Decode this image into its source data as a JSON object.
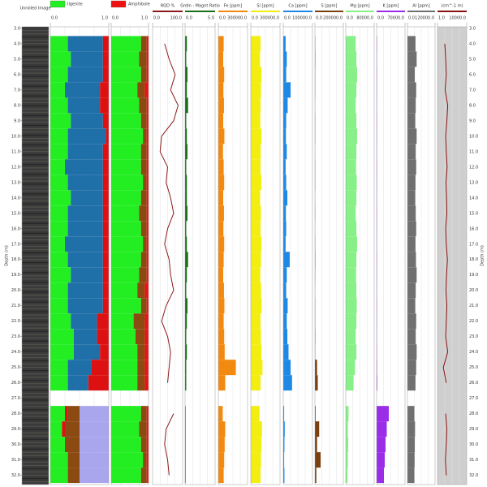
{
  "depth_axis": {
    "label": "Depth (m)",
    "ylim": [
      2.9,
      32.6
    ],
    "yticks": [
      {
        "value": 3,
        "label": "3.0"
      },
      {
        "value": 4,
        "label": "4.0"
      },
      {
        "value": 5,
        "label": "5.0"
      },
      {
        "value": 6,
        "label": "6.0"
      },
      {
        "value": 7,
        "label": "7.0"
      },
      {
        "value": 8,
        "label": "8.0"
      },
      {
        "value": 9,
        "label": "9.0"
      },
      {
        "value": 10,
        "label": "10.0"
      },
      {
        "value": 11,
        "label": "11.0"
      },
      {
        "value": 12,
        "label": "12.0"
      },
      {
        "value": 13,
        "label": "13.0"
      },
      {
        "value": 14,
        "label": "14.0"
      },
      {
        "value": 15,
        "label": "15.0"
      },
      {
        "value": 16,
        "label": "16.0"
      },
      {
        "value": 17,
        "label": "17.0"
      },
      {
        "value": 18,
        "label": "18.0"
      },
      {
        "value": 19,
        "label": "19.0"
      },
      {
        "value": 20,
        "label": "20.0"
      },
      {
        "value": 21,
        "label": "21.0"
      },
      {
        "value": 22,
        "label": "22.0"
      },
      {
        "value": 23,
        "label": "23.0"
      },
      {
        "value": 24,
        "label": "24.0"
      },
      {
        "value": 25,
        "label": "25.0"
      },
      {
        "value": 26,
        "label": "26.0"
      },
      {
        "value": 27,
        "label": "27.0"
      },
      {
        "value": 28,
        "label": "28.0"
      },
      {
        "value": 29,
        "label": "29.0"
      },
      {
        "value": 30,
        "label": "30.0"
      },
      {
        "value": 31,
        "label": "31.0"
      },
      {
        "value": 32,
        "label": "32.0"
      }
    ],
    "y": [
      4,
      5,
      6,
      7,
      8,
      9,
      10,
      11,
      12,
      13,
      14,
      15,
      16,
      17,
      18,
      19,
      20,
      21,
      22,
      23,
      24,
      25,
      26,
      27,
      28,
      29,
      30,
      31,
      32
    ]
  },
  "chart_data": [
    {
      "type": "image",
      "title": "Unrolled Image"
    },
    {
      "type": "stacked",
      "xlim": [
        0,
        1
      ],
      "xticks": [
        {
          "value": 0,
          "label": "0.0"
        },
        {
          "value": 1,
          "label": "1.0"
        }
      ],
      "series": [
        {
          "name": "Ilgenite",
          "color": "#22ee22",
          "values": [
            0.3,
            0.35,
            0.3,
            0.25,
            0.3,
            0.35,
            0.3,
            0.3,
            0.25,
            0.3,
            0.35,
            0.3,
            0.3,
            0.25,
            0.3,
            0.35,
            0.3,
            0.3,
            0.35,
            0.4,
            0.4,
            0.3,
            0.3,
            null,
            0.25,
            0.2,
            0.25,
            0.3,
            0.3
          ]
        },
        {
          "color": "#1f6fa8",
          "values": [
            0.6,
            0.55,
            0.6,
            0.6,
            0.55,
            0.55,
            0.65,
            0.6,
            0.65,
            0.6,
            0.55,
            0.6,
            0.6,
            0.65,
            0.6,
            0.55,
            0.6,
            0.6,
            0.45,
            0.4,
            0.45,
            0.4,
            0.35,
            null,
            0,
            0,
            0,
            0,
            0
          ]
        },
        {
          "color": "#dd1111",
          "values": [
            0.1,
            0.1,
            0.1,
            0.15,
            0.15,
            0.1,
            0.05,
            0.1,
            0.1,
            0.1,
            0.1,
            0.1,
            0.1,
            0.1,
            0.1,
            0.1,
            0.1,
            0.1,
            0.2,
            0.2,
            0.15,
            0.3,
            0.35,
            null,
            0.05,
            0.05,
            0,
            0,
            0
          ]
        },
        {
          "color": "#8a4a12",
          "values": [
            0,
            0,
            0,
            0,
            0,
            0,
            0,
            0,
            0,
            0,
            0,
            0,
            0,
            0,
            0,
            0,
            0,
            0,
            0,
            0,
            0,
            0,
            0,
            null,
            0.2,
            0.25,
            0.25,
            0.2,
            0.2
          ]
        },
        {
          "color": "#a9a6ee",
          "values": [
            0,
            0,
            0,
            0,
            0,
            0,
            0,
            0,
            0,
            0,
            0,
            0,
            0,
            0,
            0,
            0,
            0,
            0,
            0,
            0,
            0,
            0,
            0,
            null,
            0.5,
            0.5,
            0.5,
            0.5,
            0.5
          ]
        }
      ]
    },
    {
      "type": "stacked",
      "xlim": [
        0,
        1
      ],
      "xticks": [
        {
          "value": 0,
          "label": "0.0"
        },
        {
          "value": 1,
          "label": "1.0"
        }
      ],
      "series": [
        {
          "color": "#22ee22",
          "values": [
            0.8,
            0.75,
            0.8,
            0.7,
            0.75,
            0.8,
            0.85,
            0.8,
            0.8,
            0.85,
            0.8,
            0.75,
            0.8,
            0.85,
            0.8,
            0.75,
            0.7,
            0.8,
            0.6,
            0.65,
            0.7,
            0.7,
            0.7,
            null,
            0.8,
            0.75,
            0.8,
            0.85,
            0.8
          ]
        },
        {
          "color": "#8a4a12",
          "values": [
            0.15,
            0.2,
            0.15,
            0.2,
            0.2,
            0.15,
            0.1,
            0.15,
            0.15,
            0.1,
            0.15,
            0.2,
            0.15,
            0.1,
            0.15,
            0.2,
            0.2,
            0.15,
            0.3,
            0.25,
            0.2,
            0.2,
            0.2,
            null,
            0.15,
            0.2,
            0.15,
            0.1,
            0.15
          ]
        },
        {
          "name": "Amphibole",
          "color": "#ee1111",
          "values": [
            0.05,
            0.05,
            0.05,
            0.1,
            0.05,
            0.05,
            0.05,
            0.05,
            0.05,
            0.05,
            0.05,
            0.05,
            0.05,
            0.05,
            0.05,
            0.05,
            0.1,
            0.05,
            0.1,
            0.1,
            0.1,
            0.1,
            0.1,
            null,
            0.05,
            0.05,
            0.05,
            0.05,
            0.05
          ]
        }
      ]
    },
    {
      "type": "line",
      "title": "RQD %",
      "color": "#8b1a1a",
      "xlim": [
        0,
        100
      ],
      "xticks": [
        {
          "value": 0,
          "label": "0.0"
        },
        {
          "value": 100,
          "label": "100.0"
        }
      ],
      "values": [
        40,
        55,
        75,
        60,
        85,
        70,
        30,
        25,
        50,
        45,
        60,
        70,
        50,
        40,
        55,
        60,
        70,
        45,
        30,
        50,
        60,
        55,
        50,
        null,
        70,
        45,
        40,
        50,
        55
      ]
    },
    {
      "type": "bar",
      "title": "Grdln : Magnt Ratio",
      "color": "#1a6e1a",
      "xlim": [
        0,
        5
      ],
      "xticks": [
        {
          "value": 0,
          "label": "0.0"
        },
        {
          "value": 5,
          "label": "5.0"
        }
      ],
      "values": [
        0.3,
        0.2,
        0.4,
        0.3,
        0.5,
        0.2,
        0.3,
        0.4,
        0.2,
        0.3,
        0.3,
        0.4,
        0.2,
        0.3,
        0.5,
        0.3,
        0.2,
        0.4,
        0.3,
        0.2,
        0.3,
        0.2,
        0.2,
        null,
        0.1,
        0.1,
        0.1,
        0.1,
        0.1
      ]
    },
    {
      "type": "bar",
      "title": "Fe [ppm]",
      "color": "#f28a10",
      "xlim": [
        0,
        300000
      ],
      "xticks": [
        {
          "value": 0,
          "label": "0.0"
        },
        {
          "value": 300000,
          "label": "300000.0"
        }
      ],
      "values": [
        55000,
        50000,
        60000,
        52000,
        58000,
        50000,
        62000,
        48000,
        55000,
        60000,
        50000,
        58000,
        52000,
        60000,
        55000,
        50000,
        58000,
        62000,
        55000,
        60000,
        65000,
        180000,
        70000,
        null,
        45000,
        70000,
        65000,
        60000,
        55000
      ]
    },
    {
      "type": "bar",
      "title": "Si [ppm]",
      "color": "#f2ee10",
      "xlim": [
        0,
        300000
      ],
      "xticks": [
        {
          "value": 0,
          "label": "0.0"
        },
        {
          "value": 300000,
          "label": "300000.0"
        }
      ],
      "values": [
        100000,
        95000,
        110000,
        105000,
        100000,
        98000,
        110000,
        102000,
        100000,
        108000,
        96000,
        104000,
        100000,
        110000,
        105000,
        98000,
        106000,
        112000,
        100000,
        104000,
        110000,
        120000,
        100000,
        null,
        90000,
        115000,
        110000,
        105000,
        100000
      ]
    },
    {
      "type": "bar",
      "title": "Ca [ppm]",
      "color": "#1e88e5",
      "xlim": [
        0,
        100000
      ],
      "xticks": [
        {
          "value": 0,
          "label": "0.0"
        },
        {
          "value": 100000,
          "label": "100000.0"
        }
      ],
      "values": [
        8000,
        12000,
        10000,
        25000,
        15000,
        10000,
        9000,
        12000,
        8000,
        10000,
        14000,
        9000,
        10000,
        8000,
        22000,
        12000,
        10000,
        15000,
        12000,
        14000,
        18000,
        25000,
        30000,
        null,
        3000,
        5000,
        4000,
        3000,
        4000
      ]
    },
    {
      "type": "bar",
      "title": "S [ppm]",
      "color": "#7a4010",
      "xlim": [
        0,
        200000
      ],
      "xticks": [
        {
          "value": 0,
          "label": "0.0"
        },
        {
          "value": 200000,
          "label": "200000.0"
        }
      ],
      "values": [
        2000,
        3000,
        2000,
        2000,
        1000,
        2000,
        2000,
        1000,
        2000,
        2000,
        1000,
        2000,
        1000,
        2000,
        3000,
        2000,
        1000,
        2000,
        2000,
        3000,
        2000,
        15000,
        20000,
        null,
        5000,
        30000,
        15000,
        40000,
        10000
      ]
    },
    {
      "type": "bar",
      "title": "Mg [ppm]",
      "color": "#88f088",
      "xlim": [
        0,
        80000
      ],
      "xticks": [
        {
          "value": 0,
          "label": "0.0"
        },
        {
          "value": 80000,
          "label": "80000.0"
        }
      ],
      "values": [
        28000,
        30000,
        32000,
        30000,
        28000,
        30000,
        32000,
        30000,
        29000,
        31000,
        30000,
        28000,
        30000,
        32000,
        30000,
        29000,
        30000,
        31000,
        30000,
        28000,
        30000,
        26000,
        22000,
        null,
        8000,
        6000,
        7000,
        6000,
        5000
      ]
    },
    {
      "type": "bar",
      "title": "K [ppm]",
      "color": "#9a2ee8",
      "xlim": [
        0,
        70000
      ],
      "xticks": [
        {
          "value": 0,
          "label": "0.0"
        },
        {
          "value": 70000,
          "label": "70000.0"
        }
      ],
      "values": [
        1000,
        800,
        1000,
        900,
        800,
        1000,
        900,
        800,
        1000,
        900,
        800,
        1000,
        900,
        800,
        1000,
        900,
        800,
        1000,
        900,
        800,
        1000,
        1200,
        1500,
        null,
        30000,
        25000,
        22000,
        20000,
        18000
      ]
    },
    {
      "type": "bar",
      "title": "Al [ppm]",
      "color": "#707070",
      "xlim": [
        0,
        120000
      ],
      "xticks": [
        {
          "value": 0,
          "label": "0.0"
        },
        {
          "value": 120000,
          "label": "120000.0"
        }
      ],
      "values": [
        35000,
        40000,
        32000,
        38000,
        36000,
        34000,
        40000,
        36000,
        38000,
        35000,
        34000,
        36000,
        38000,
        35000,
        37000,
        40000,
        36000,
        34000,
        38000,
        36000,
        40000,
        38000,
        35000,
        null,
        30000,
        33000,
        32000,
        31000,
        30000
      ]
    },
    {
      "type": "line",
      "title": "(cm^-1 m)",
      "color": "#8b1010",
      "background": "#cfcfcf",
      "xlim": [
        1,
        10000
      ],
      "xticks": [
        {
          "value": 1,
          "label": "1.0"
        },
        {
          "value": 10000,
          "label": "10000.0"
        }
      ],
      "values": [
        2500,
        2800,
        3000,
        2600,
        3500,
        3200,
        2800,
        3000,
        3300,
        2900,
        3100,
        3200,
        2800,
        3000,
        3400,
        3100,
        2900,
        3200,
        3000,
        2800,
        3500,
        2000,
        3000,
        null,
        2800,
        3200,
        3000,
        2700,
        3000
      ]
    }
  ]
}
